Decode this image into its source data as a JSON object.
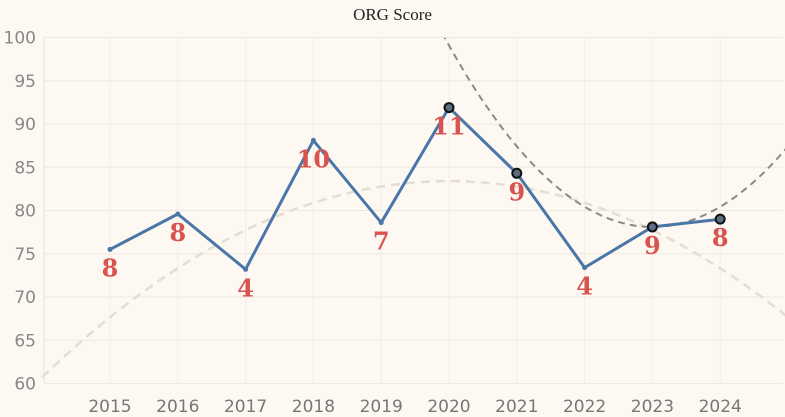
{
  "chart_data": {
    "type": "line",
    "title": "ORG Score",
    "xlabel": "",
    "ylabel": "",
    "categories": [
      "2015",
      "2016",
      "2017",
      "2018",
      "2019",
      "2020",
      "2021",
      "2022",
      "2023",
      "2024"
    ],
    "values": [
      75.5,
      79.6,
      73.2,
      88.1,
      78.6,
      91.9,
      84.3,
      73.4,
      78.1,
      79.0
    ],
    "data_labels": [
      "8",
      "8",
      "4",
      "10",
      "7",
      "11",
      "9",
      "4",
      "9",
      "8"
    ],
    "highlighted_points": [
      "2020",
      "2021",
      "2023",
      "2024"
    ],
    "yticks": [
      60,
      65,
      70,
      75,
      80,
      85,
      90,
      95,
      100
    ],
    "ylim": [
      58,
      101
    ],
    "grid": true,
    "trend_lines": [
      {
        "style": "dashed",
        "color": "#e3ddd2",
        "shape": "quadratic"
      },
      {
        "style": "dashed",
        "color": "#8c8a85",
        "shape": "quadratic"
      }
    ],
    "colors": {
      "line": "#4a76a8",
      "labels": "#d9534f",
      "background": "#fdf9f2",
      "highlight_fill": "#5b6f84"
    }
  }
}
